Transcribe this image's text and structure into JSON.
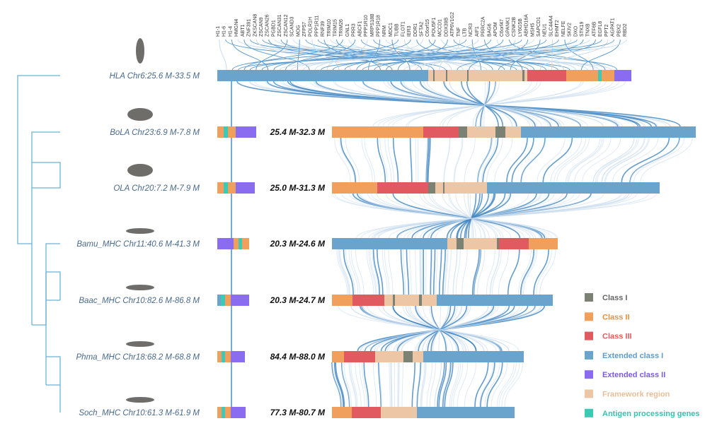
{
  "genes": [
    "H1-1",
    "H1-6",
    "H1-4",
    "HMGN4",
    "ABT1",
    "ZNF391",
    "ZKSCAN8",
    "ZSCAN9",
    "ZSCAN26",
    "PGBD1",
    "ZSCAN31",
    "ZSCAN12",
    "SCAND3",
    "MOG",
    "ZFP57",
    "POLR1H",
    "PPP1R11",
    "RNF39",
    "TRIM10",
    "TRIM15",
    "TRIM26",
    "GNL1",
    "PRR3",
    "ABCF1",
    "PPP1R10",
    "MRPS18B",
    "PPP1R18",
    "NRM",
    "MDC1",
    "TUBB",
    "FLOT1",
    "IER3",
    "DDR1",
    "SFTA2",
    "C6orf15",
    "POU5F1",
    "MCCD1",
    "DDX39B",
    "ATP6V1G2",
    "TNF",
    "LTB",
    "NCR3",
    "AIF1",
    "PRRC2A",
    "BAG6",
    "APOM",
    "C6orf47",
    "GPANK1",
    "CSNK2B",
    "LY6G5B",
    "ABHD16A",
    "MSH5",
    "SAPCD1",
    "NEU1",
    "SLC44A4",
    "EHMT2",
    "NELFE",
    "SKIV2",
    "DXO",
    "STK19",
    "TNXB",
    "ATF6B",
    "EGFL8",
    "PPT2",
    "AGPAT1",
    "PBX2",
    "RBD2"
  ],
  "rows": [
    {
      "species": "HLA Chr6:25.6 M-33.5 M"
    },
    {
      "species": "BoLA Chr23:6.9 M-7.8 M",
      "range": "25.4 M-32.3 M"
    },
    {
      "species": "OLA Chr20:7.2 M-7.9 M",
      "range": "25.0 M-31.3 M"
    },
    {
      "species": "Bamu_MHC Chr11:40.6 M-41.3 M",
      "range": "20.3 M-24.6 M"
    },
    {
      "species": "Baac_MHC Chr10:82.6 M-86.8 M",
      "range": "20.3 M-24.7 M"
    },
    {
      "species": "Phma_MHC Chr18:68.2 M-68.8 M",
      "range": "84.4 M-88.0 M"
    },
    {
      "species": "Soch_MHC Chr10:61.3 M-61.9 M",
      "range": "77.3 M-80.7 M"
    }
  ],
  "legend": [
    "Class I",
    "Class II",
    "Class III",
    "Extended class I",
    "Extended class II",
    "Framework region",
    "Antigen processing genes"
  ]
}
